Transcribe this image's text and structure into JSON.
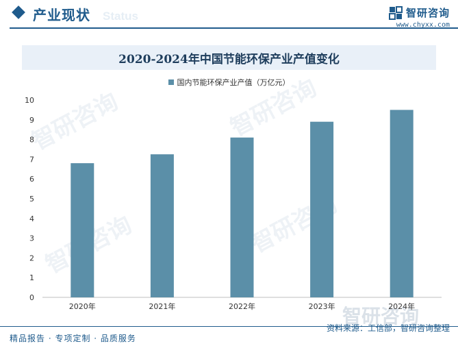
{
  "header": {
    "section_title": "产业现状",
    "section_watermark": "Status",
    "brand_name": "智研咨询",
    "brand_url": "www.chyxx.com"
  },
  "watermark_text": "智研咨询",
  "footer": {
    "left_text": "精品报告 · 专项定制 · 品质服务",
    "source": "资料来源：工信部，智研咨询整理"
  },
  "colors": {
    "bar": "#5b8fa8",
    "brand": "#1f5b8c"
  },
  "chart_data": {
    "type": "bar",
    "title": "2020-2024年中国节能环保产业产值变化",
    "categories": [
      "2020年",
      "2021年",
      "2022年",
      "2023年",
      "2024年"
    ],
    "series": [
      {
        "name": "国内节能环保产业产值（万亿元）",
        "values": [
          6.8,
          7.25,
          8.1,
          8.9,
          9.5
        ]
      }
    ],
    "ylim": [
      0,
      10
    ],
    "yticks": [
      0,
      1,
      2,
      3,
      4,
      5,
      6,
      7,
      8,
      9,
      10
    ],
    "grid": false,
    "legend": "top-center"
  }
}
